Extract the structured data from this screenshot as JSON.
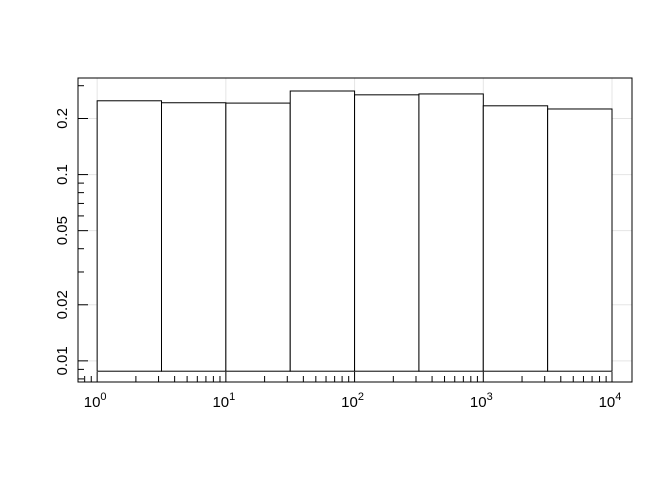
{
  "chart_data": {
    "type": "bar",
    "subtype": "histogram",
    "title": "",
    "xlabel": "",
    "ylabel": "",
    "x_scale": "log10",
    "y_scale": "log10",
    "xlim": [
      0.71,
      14300
    ],
    "ylim": [
      0.0077,
      0.33
    ],
    "grid": true,
    "bin_edges": [
      1,
      3.162,
      10,
      31.62,
      100,
      316.2,
      1000,
      3162,
      10000
    ],
    "values": [
      0.249,
      0.243,
      0.242,
      0.281,
      0.268,
      0.271,
      0.234,
      0.225
    ],
    "bar_base": 0.0088,
    "x_ticks": [
      {
        "value": 1,
        "base": "10",
        "exp": "0"
      },
      {
        "value": 10,
        "base": "10",
        "exp": "1"
      },
      {
        "value": 100,
        "base": "10",
        "exp": "2"
      },
      {
        "value": 1000,
        "base": "10",
        "exp": "3"
      },
      {
        "value": 10000,
        "base": "10",
        "exp": "4"
      }
    ],
    "y_ticks": [
      {
        "value": 0.01,
        "label": "0.01"
      },
      {
        "value": 0.02,
        "label": "0.02"
      },
      {
        "value": 0.05,
        "label": "0.05"
      },
      {
        "value": 0.1,
        "label": "0.1"
      },
      {
        "value": 0.2,
        "label": "0.2"
      }
    ],
    "colors": {
      "bar_fill": "#ffffff",
      "bar_stroke": "#000000",
      "grid": "#e5e5e5"
    }
  }
}
